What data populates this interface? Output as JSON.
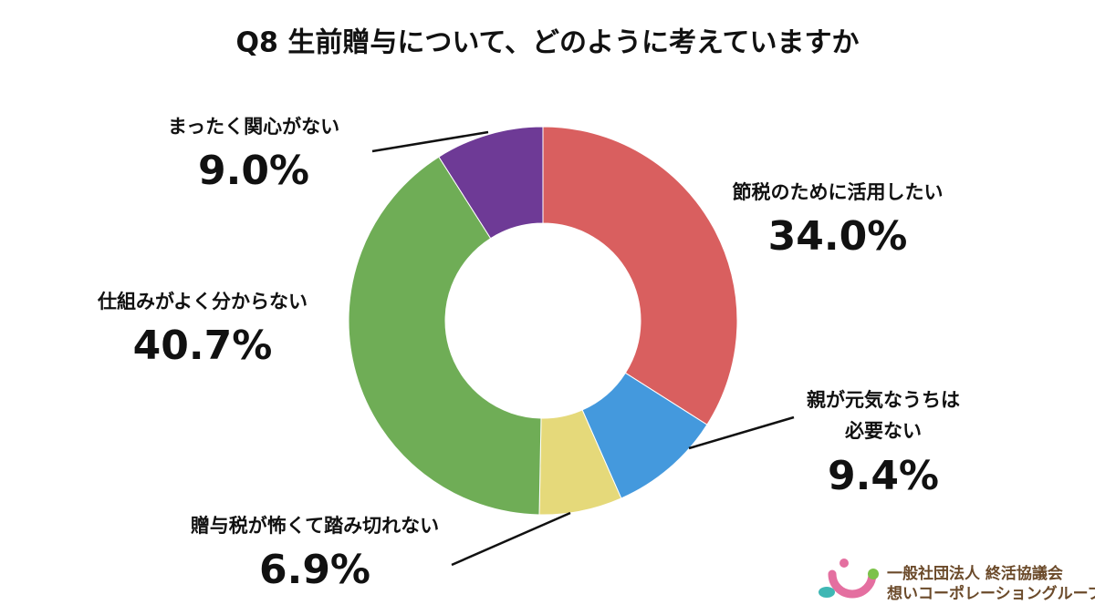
{
  "chart_data": {
    "type": "pie",
    "donut": true,
    "title": "Q8 生前贈与について、どのように考えていますか",
    "categories": [
      "節税のために活用したい",
      "親が元気なうちは\n必要ない",
      "贈与税が怖くて踏み切れない",
      "仕組みがよく分からない",
      "まったく関心がない"
    ],
    "values": [
      34.0,
      9.4,
      6.9,
      40.7,
      9.0
    ],
    "value_labels": [
      "34.0%",
      "9.4%",
      "6.9%",
      "40.7%",
      "9.0%"
    ],
    "colors": [
      "#d95f5f",
      "#4499dd",
      "#e5d97a",
      "#6fad56",
      "#6e3a96"
    ]
  },
  "logo": {
    "line1": "一般社団法人 終活協議会",
    "line2": "想いコーポレーショングループ"
  }
}
